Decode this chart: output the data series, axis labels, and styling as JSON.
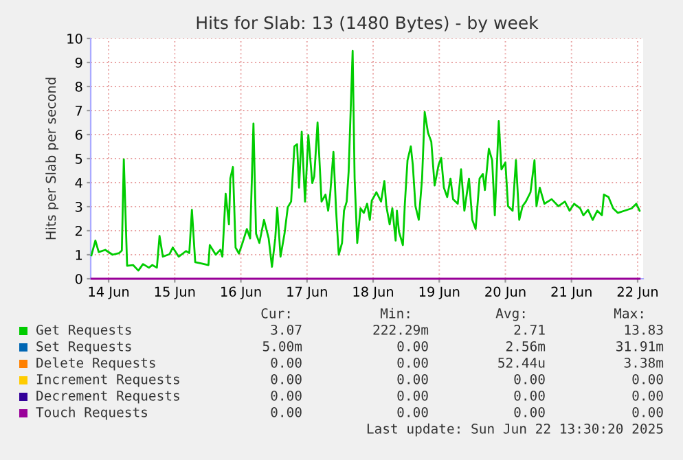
{
  "chart_data": {
    "type": "line",
    "title": "Hits for Slab: 13 (1480 Bytes) - by week",
    "ylabel": "Hits per Slab per second",
    "xlim": [
      "2025-06-13T17:30",
      "2025-06-22T02:00"
    ],
    "ylim": [
      0,
      10
    ],
    "yticks": [
      0,
      1,
      2,
      3,
      4,
      5,
      6,
      7,
      8,
      9,
      10
    ],
    "xticks": [
      {
        "value": "2025-06-14",
        "label": "14 Jun"
      },
      {
        "value": "2025-06-15",
        "label": "15 Jun"
      },
      {
        "value": "2025-06-16",
        "label": "16 Jun"
      },
      {
        "value": "2025-06-17",
        "label": "17 Jun"
      },
      {
        "value": "2025-06-18",
        "label": "18 Jun"
      },
      {
        "value": "2025-06-19",
        "label": "19 Jun"
      },
      {
        "value": "2025-06-20",
        "label": "20 Jun"
      },
      {
        "value": "2025-06-21",
        "label": "21 Jun"
      },
      {
        "value": "2025-06-22",
        "label": "22 Jun"
      }
    ],
    "grid": true,
    "legend": "bottom",
    "marker": "none",
    "line_style": "solid",
    "series": [
      {
        "name": "Get Requests",
        "color": "#00cc00",
        "x": [
          "2025-06-13T17:46",
          "2025-06-13T19:12",
          "2025-06-13T20:24",
          "2025-06-13T22:48",
          "2025-06-14T01:26",
          "2025-06-14T03:50",
          "2025-06-14T04:48",
          "2025-06-14T05:31",
          "2025-06-14T06:43",
          "2025-06-14T08:53",
          "2025-06-14T10:48",
          "2025-06-14T12:29",
          "2025-06-14T14:38",
          "2025-06-14T15:50",
          "2025-06-14T17:31",
          "2025-06-14T18:29",
          "2025-06-14T19:41",
          "2025-06-14T22:05",
          "2025-06-14T23:17",
          "2025-06-15T01:26",
          "2025-06-15T04:05",
          "2025-06-15T05:17",
          "2025-06-15T06:14",
          "2025-06-15T07:26",
          "2025-06-15T09:50",
          "2025-06-15T12:14",
          "2025-06-15T12:43",
          "2025-06-15T14:53",
          "2025-06-15T16:34",
          "2025-06-15T17:17",
          "2025-06-15T18:29",
          "2025-06-15T19:41",
          "2025-06-15T20:10",
          "2025-06-15T21:07",
          "2025-06-15T22:05",
          "2025-06-15T23:17",
          "2025-06-16T00:43",
          "2025-06-16T02:10",
          "2025-06-16T03:22",
          "2025-06-16T04:34",
          "2025-06-16T05:31",
          "2025-06-16T06:43",
          "2025-06-16T08:24",
          "2025-06-16T10:05",
          "2025-06-16T11:17",
          "2025-06-16T12:29",
          "2025-06-16T13:12",
          "2025-06-16T14:24",
          "2025-06-16T15:50",
          "2025-06-16T17:02",
          "2025-06-16T18:14",
          "2025-06-16T19:26",
          "2025-06-16T20:24",
          "2025-06-16T21:07",
          "2025-06-16T22:05",
          "2025-06-16T23:17",
          "2025-06-17T00:29",
          "2025-06-17T01:55",
          "2025-06-17T02:38",
          "2025-06-17T03:50",
          "2025-06-17T05:17",
          "2025-06-17T06:43",
          "2025-06-17T07:41",
          "2025-06-17T08:24",
          "2025-06-17T09:36",
          "2025-06-17T10:34",
          "2025-06-17T11:31",
          "2025-06-17T12:43",
          "2025-06-17T13:26",
          "2025-06-17T14:24",
          "2025-06-17T15:07",
          "2025-06-17T16:34",
          "2025-06-17T17:17",
          "2025-06-17T18:14",
          "2025-06-17T19:26",
          "2025-06-17T20:38",
          "2025-06-17T21:50",
          "2025-06-17T22:48",
          "2025-06-17T23:31",
          "2025-06-18T01:12",
          "2025-06-18T02:53",
          "2025-06-18T04:05",
          "2025-06-18T04:48",
          "2025-06-18T06:00",
          "2025-06-18T06:58",
          "2025-06-18T08:10",
          "2025-06-18T08:38",
          "2025-06-18T09:22",
          "2025-06-18T10:48",
          "2025-06-18T11:31",
          "2025-06-18T12:29",
          "2025-06-18T13:41",
          "2025-06-18T14:24",
          "2025-06-18T15:22",
          "2025-06-18T16:34",
          "2025-06-18T17:46",
          "2025-06-18T18:43",
          "2025-06-18T19:55",
          "2025-06-18T21:07",
          "2025-06-18T22:19",
          "2025-06-18T23:46",
          "2025-06-19T00:43",
          "2025-06-19T01:41",
          "2025-06-19T02:53",
          "2025-06-19T04:05",
          "2025-06-19T05:02",
          "2025-06-19T06:43",
          "2025-06-19T07:55",
          "2025-06-19T09:07",
          "2025-06-19T10:48",
          "2025-06-19T12:00",
          "2025-06-19T13:12",
          "2025-06-19T14:38",
          "2025-06-19T15:50",
          "2025-06-19T16:34",
          "2025-06-19T18:00",
          "2025-06-19T19:12",
          "2025-06-19T20:10",
          "2025-06-19T21:36",
          "2025-06-19T22:34",
          "2025-06-20T00:00",
          "2025-06-20T00:58",
          "2025-06-20T02:38",
          "2025-06-20T03:50",
          "2025-06-20T05:02",
          "2025-06-20T06:14",
          "2025-06-20T07:26",
          "2025-06-20T09:07",
          "2025-06-20T10:34",
          "2025-06-20T11:17",
          "2025-06-20T12:29",
          "2025-06-20T14:10",
          "2025-06-20T16:48",
          "2025-06-20T19:12",
          "2025-06-20T21:36",
          "2025-06-20T23:17",
          "2025-06-21T00:58",
          "2025-06-21T03:07",
          "2025-06-21T04:19",
          "2025-06-21T06:00",
          "2025-06-21T07:41",
          "2025-06-21T09:22",
          "2025-06-21T11:02",
          "2025-06-21T11:46",
          "2025-06-21T13:26",
          "2025-06-21T15:07",
          "2025-06-21T16:48",
          "2025-06-21T19:12",
          "2025-06-21T21:50",
          "2025-06-21T23:31",
          "2025-06-22T00:43"
        ],
        "values": [
          0.98,
          1.59,
          1.11,
          1.2,
          1.0,
          1.07,
          1.17,
          4.97,
          0.54,
          0.57,
          0.34,
          0.61,
          0.46,
          0.57,
          0.46,
          1.78,
          0.92,
          1.02,
          1.3,
          0.92,
          1.15,
          1.07,
          2.87,
          0.69,
          0.63,
          0.57,
          1.4,
          1.0,
          1.21,
          0.92,
          3.54,
          2.26,
          4.17,
          4.65,
          1.3,
          1.05,
          1.53,
          2.07,
          1.68,
          6.46,
          1.87,
          1.49,
          2.45,
          1.68,
          0.5,
          1.68,
          2.96,
          0.92,
          1.87,
          2.98,
          3.21,
          5.51,
          5.6,
          3.79,
          6.12,
          3.21,
          5.98,
          3.98,
          4.26,
          6.5,
          3.21,
          3.5,
          2.83,
          3.5,
          5.28,
          2.83,
          1.0,
          1.49,
          2.83,
          3.21,
          4.46,
          9.48,
          4.17,
          1.49,
          2.93,
          2.74,
          3.12,
          2.45,
          3.25,
          3.6,
          3.21,
          4.07,
          3.02,
          2.26,
          2.93,
          1.59,
          2.83,
          1.97,
          1.4,
          3.12,
          4.93,
          5.51,
          4.74,
          3.02,
          2.45,
          4.17,
          6.94,
          6.08,
          5.7,
          3.88,
          4.74,
          5.03,
          3.79,
          3.4,
          4.17,
          3.31,
          3.12,
          4.55,
          2.83,
          4.17,
          2.45,
          2.07,
          4.17,
          4.36,
          3.69,
          5.41,
          4.93,
          2.64,
          6.56,
          4.55,
          4.84,
          3.02,
          2.83,
          4.93,
          2.45,
          3.02,
          3.21,
          3.6,
          4.93,
          3.02,
          3.79,
          3.12,
          3.31,
          3.02,
          3.21,
          2.83,
          3.12,
          2.93,
          2.64,
          2.87,
          2.45,
          2.83,
          2.64,
          3.5,
          3.4,
          2.93,
          2.74,
          2.83,
          2.93,
          3.12,
          2.83
        ]
      },
      {
        "name": "Set Requests",
        "color": "#0066b3"
      },
      {
        "name": "Delete Requests",
        "color": "#ff8000"
      },
      {
        "name": "Increment Requests",
        "color": "#ffcc00"
      },
      {
        "name": "Decrement Requests",
        "color": "#330099"
      },
      {
        "name": "Touch Requests",
        "color": "#990099",
        "x": [
          "2025-06-13T17:46",
          "2025-06-22T00:43"
        ],
        "values": [
          0,
          0
        ]
      }
    ],
    "annotations": [
      "Cur:",
      "Min:",
      "Avg:",
      "Max:",
      "3.07",
      "222.29m",
      "2.71",
      "13.83",
      "5.00m",
      "0.00",
      "2.56m",
      "31.91m",
      "0.00",
      "0.00",
      "52.44u",
      "3.38m",
      "0.00",
      "0.00",
      "0.00",
      "0.00",
      "0.00",
      "0.00",
      "0.00",
      "0.00",
      "0.00",
      "0.00",
      "0.00",
      "0.00",
      "Last update: Sun Jun 22 13:30:20 2025"
    ]
  }
}
